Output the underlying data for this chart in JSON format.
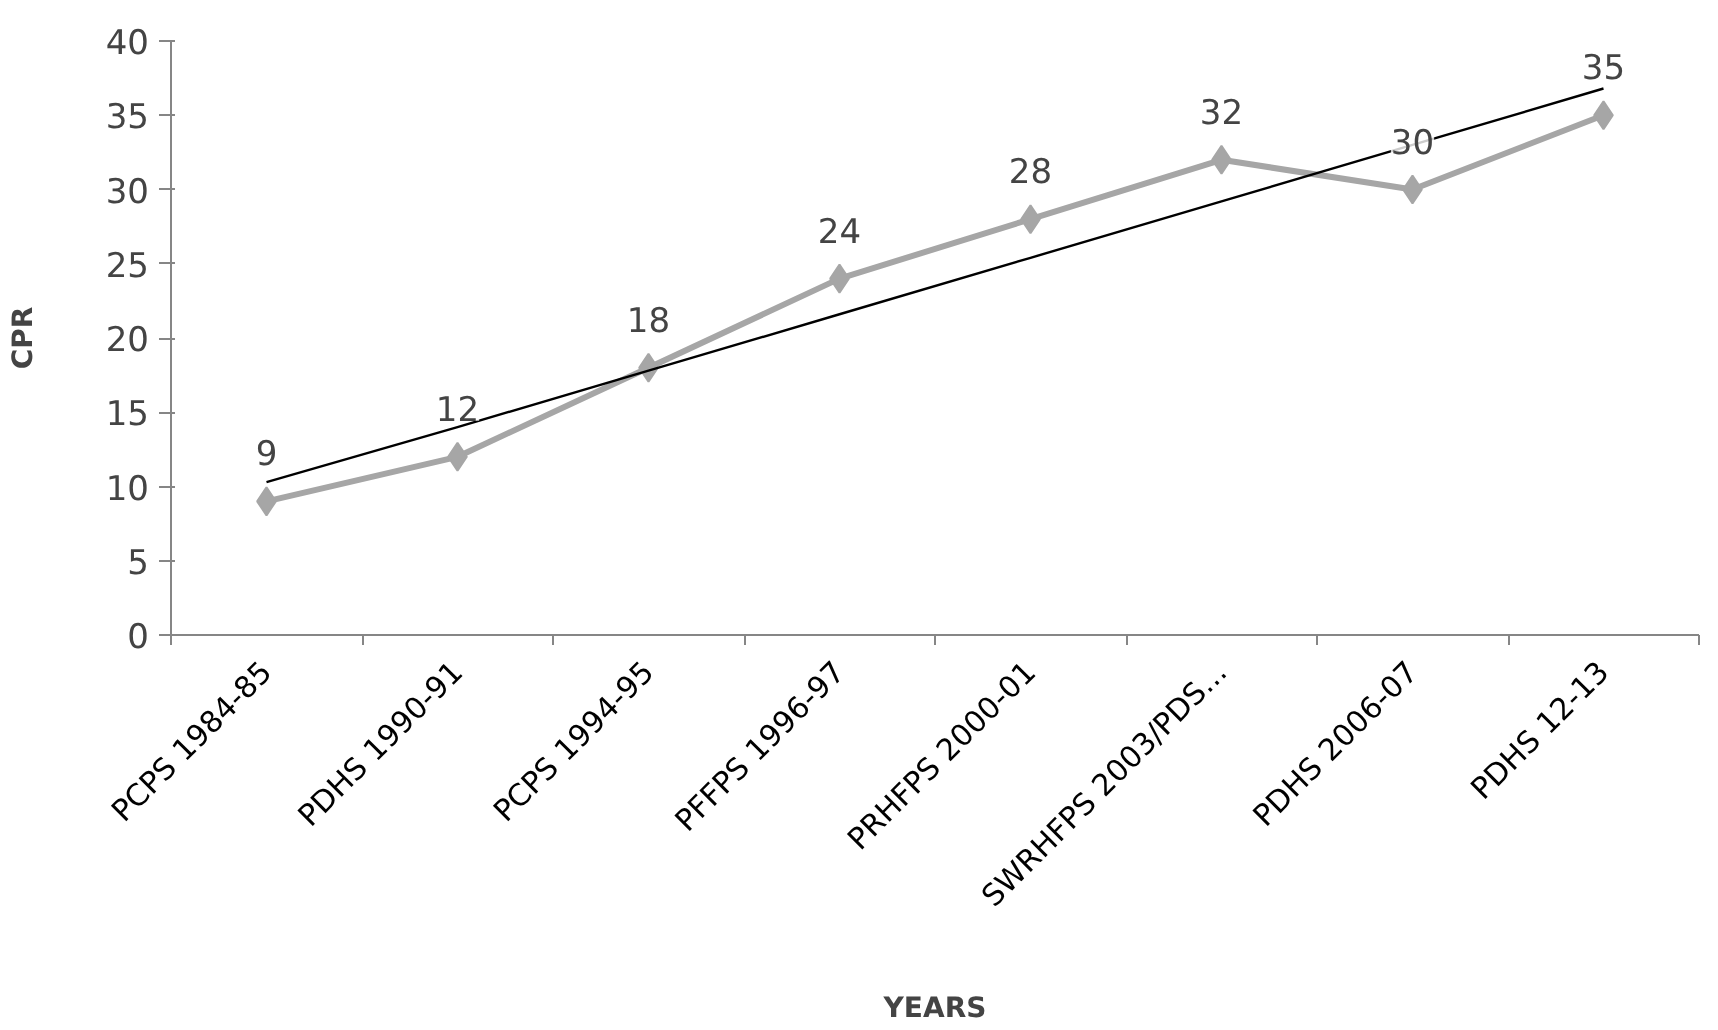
{
  "chart_data": {
    "type": "line",
    "xlabel": "YEARS",
    "ylabel": "CPR",
    "categories": [
      "PCPS 1984-85",
      "PDHS 1990-91",
      "PCPS 1994-95",
      "PFFPS 1996-97",
      "PRHFPS 2000-01",
      "SWRHFPS 2003/PDS...",
      "PDHS 2006-07",
      "PDHS 12-13"
    ],
    "series": [
      {
        "color": "#a6a6a6",
        "values": [
          9,
          12,
          18,
          24,
          28,
          32,
          30,
          35
        ],
        "value_labels": [
          "9",
          "12",
          "18",
          "24",
          "28",
          "32",
          "30",
          "35"
        ]
      },
      {
        "color": "#000000",
        "values": [
          10.3,
          14.0,
          17.8,
          21.6,
          25.4,
          29.2,
          33.0,
          36.8
        ],
        "marker": "none"
      }
    ],
    "marker": "diamond",
    "ylim": [
      0,
      40
    ],
    "yticks": [
      0,
      5,
      10,
      15,
      20,
      25,
      30,
      35,
      40
    ],
    "grid": false
  }
}
